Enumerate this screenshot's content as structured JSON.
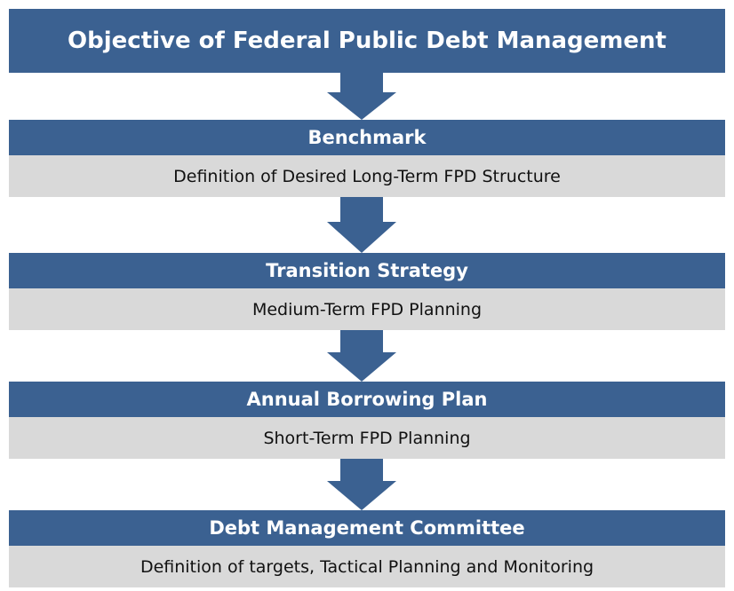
{
  "header": {
    "title": "Objective of Federal Public Debt Management"
  },
  "steps": [
    {
      "title": "Benchmark",
      "description": "Definition of Desired Long-Term FPD Structure"
    },
    {
      "title": "Transition Strategy",
      "description": "Medium-Term FPD Planning"
    },
    {
      "title": "Annual Borrowing Plan",
      "description": "Short-Term FPD Planning"
    },
    {
      "title": "Debt Management Committee",
      "description": "Definition of targets, Tactical Planning and Monitoring"
    }
  ]
}
